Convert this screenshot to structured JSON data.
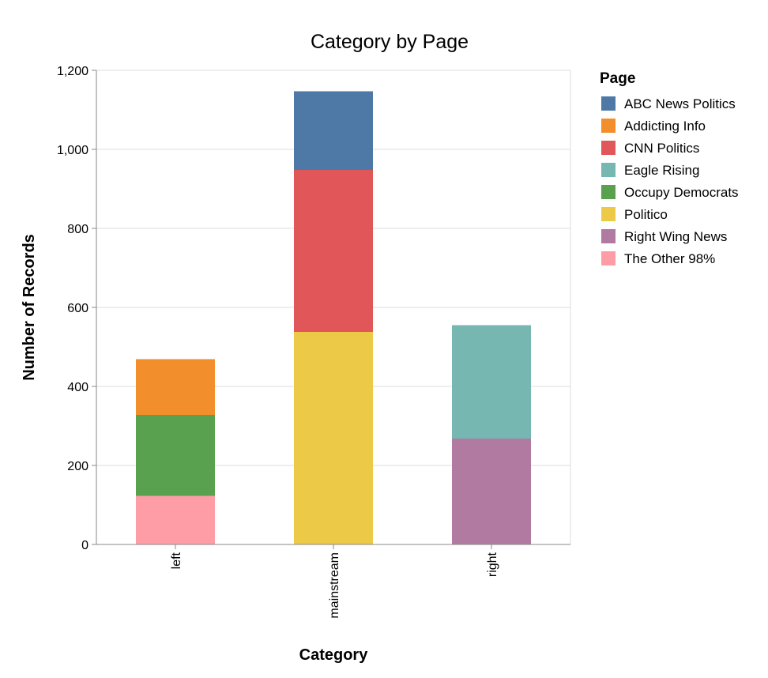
{
  "chart_data": {
    "type": "bar",
    "stacked": true,
    "title": "Category by Page",
    "xlabel": "Category",
    "ylabel": "Number of Records",
    "ylim": [
      0,
      1200
    ],
    "yticks": [
      0,
      200,
      400,
      600,
      800,
      1000,
      1200
    ],
    "ytick_labels": [
      "0",
      "200",
      "400",
      "600",
      "800",
      "1,000",
      "1,200"
    ],
    "categories": [
      "left",
      "mainstream",
      "right"
    ],
    "grid": true,
    "legend": {
      "title": "Page",
      "position": "right",
      "entries": [
        "ABC News Politics",
        "Addicting Info",
        "CNN Politics",
        "Eagle Rising",
        "Occupy Democrats",
        "Politico",
        "Right Wing News",
        "The Other 98%"
      ]
    },
    "series": [
      {
        "name": "The Other 98%",
        "color": "#ff9da7",
        "values": [
          123,
          0,
          0
        ]
      },
      {
        "name": "Occupy Democrats",
        "color": "#59a14f",
        "values": [
          205,
          0,
          0
        ]
      },
      {
        "name": "Addicting Info",
        "color": "#f28e2b",
        "values": [
          141,
          0,
          0
        ]
      },
      {
        "name": "Politico",
        "color": "#edc948",
        "values": [
          0,
          538,
          0
        ]
      },
      {
        "name": "CNN Politics",
        "color": "#e15759",
        "values": [
          0,
          410,
          0
        ]
      },
      {
        "name": "ABC News Politics",
        "color": "#4e79a7",
        "values": [
          0,
          199,
          0
        ]
      },
      {
        "name": "Right Wing News",
        "color": "#b07aa1",
        "values": [
          0,
          0,
          268
        ]
      },
      {
        "name": "Eagle Rising",
        "color": "#76b7b2",
        "values": [
          0,
          0,
          287
        ]
      }
    ]
  }
}
